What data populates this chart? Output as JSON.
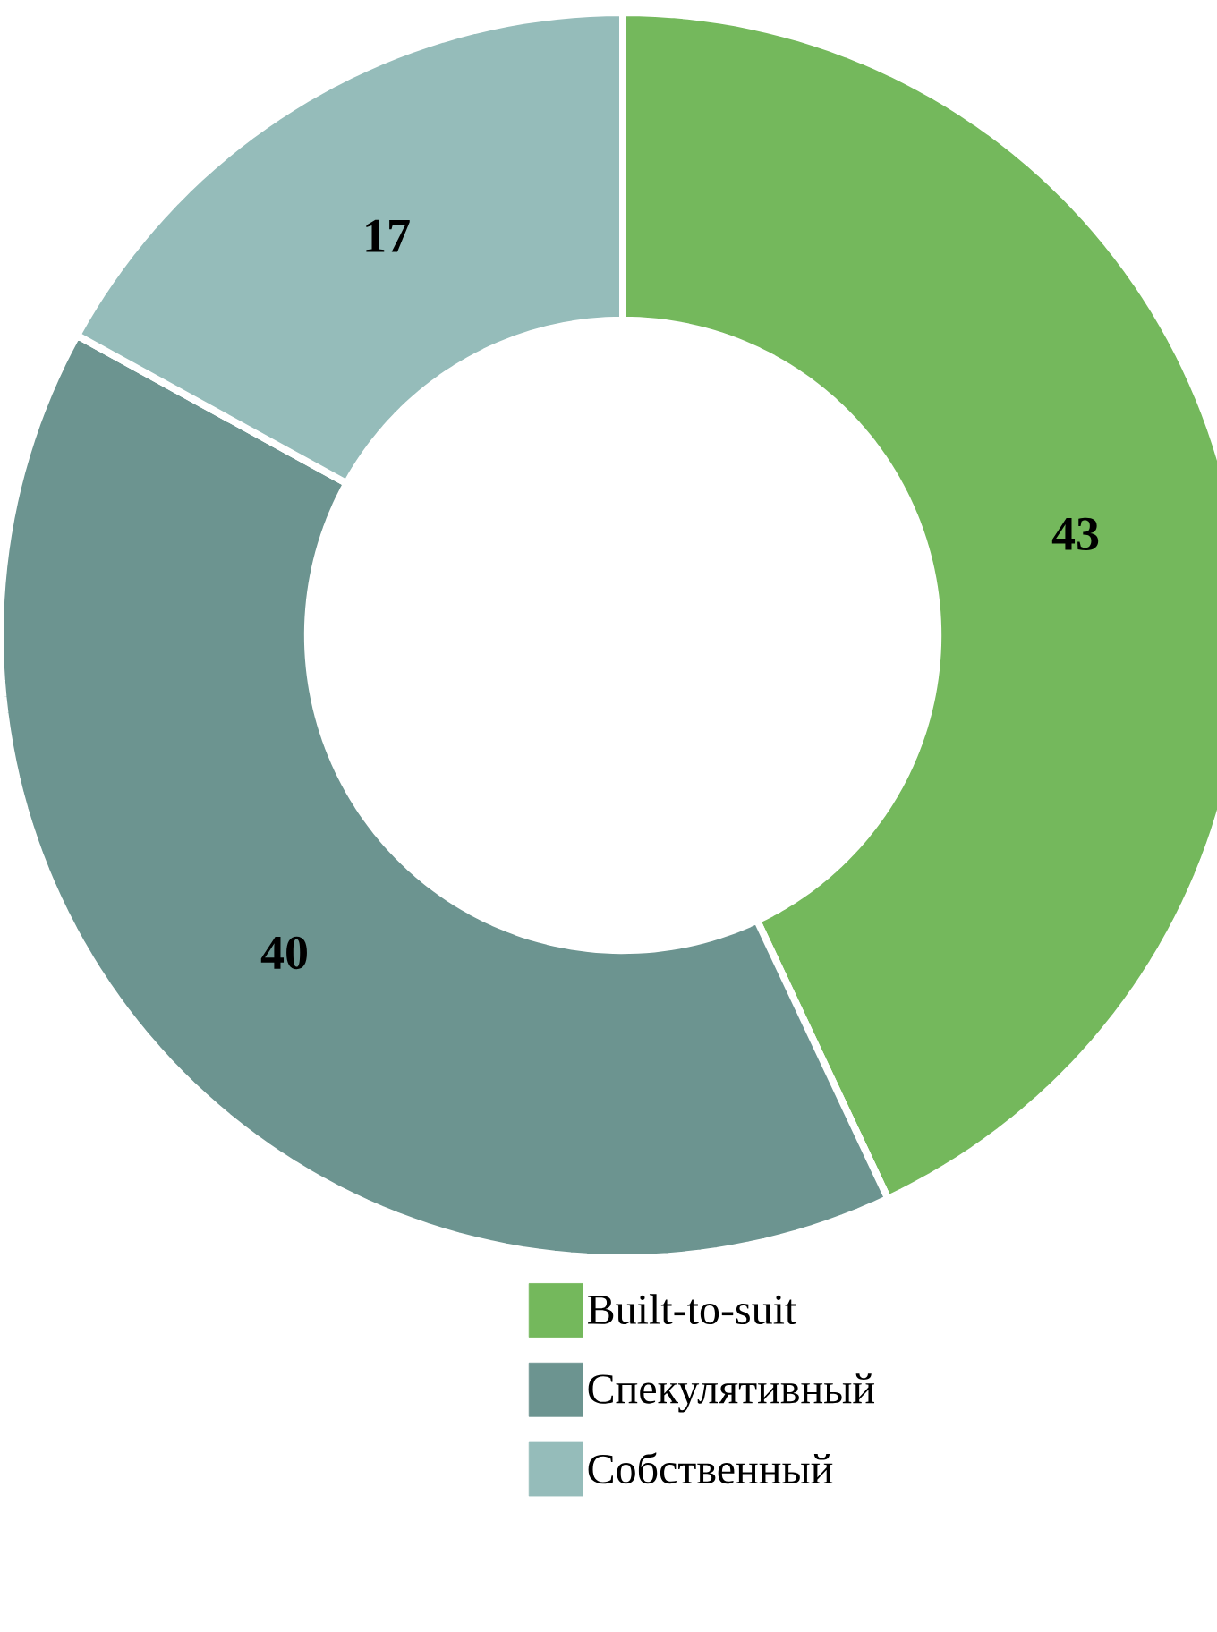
{
  "chart_data": {
    "type": "donut",
    "categories": [
      "Built-to-suit",
      "Спекулятивный",
      "Собственный"
    ],
    "values": [
      43,
      40,
      17
    ],
    "colors": [
      "#74b85c",
      "#6c9490",
      "#95bcba"
    ],
    "data_labels": true,
    "legend": "bottom"
  }
}
